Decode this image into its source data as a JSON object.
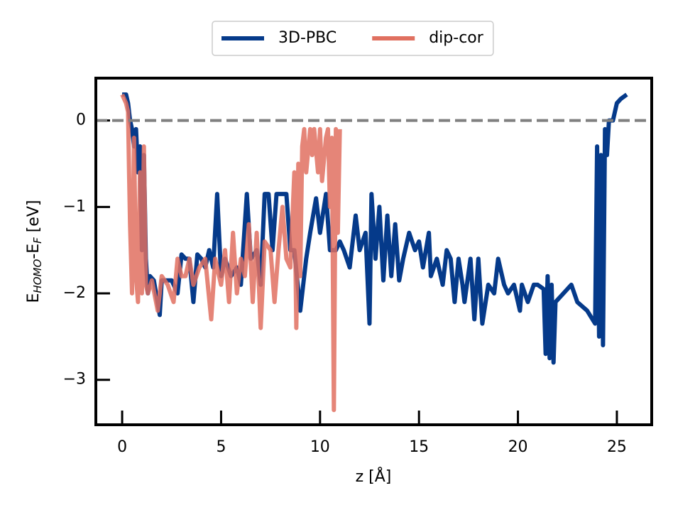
{
  "chart_data": {
    "type": "line",
    "xlabel": "z [Å]",
    "ylabel": [
      {
        "text": "E"
      },
      {
        "text": "HOMO",
        "sub": true
      },
      {
        "text": "-E"
      },
      {
        "text": "F",
        "sub": true
      },
      {
        "text": " [eV]"
      }
    ],
    "xlim": [
      -1.33,
      26.76
    ],
    "ylim": [
      -3.52,
      0.49
    ],
    "xticks": [
      0,
      5,
      10,
      15,
      20,
      25
    ],
    "yticks": [
      {
        "value": -3,
        "label": "−3"
      },
      {
        "value": -2,
        "label": "−2"
      },
      {
        "value": -1,
        "label": "−1"
      },
      0
    ],
    "hline": {
      "value": 0,
      "color": "#808080"
    },
    "legend": "top-center",
    "series": [
      {
        "name": "3D-PBC",
        "color": "#053a8a",
        "x": [
          0.0,
          0.2,
          0.3,
          0.4,
          0.5,
          0.6,
          0.7,
          0.8,
          0.9,
          1.0,
          1.1,
          1.2,
          1.3,
          1.4,
          1.6,
          1.9,
          2.0,
          2.5,
          2.8,
          3.0,
          3.2,
          3.4,
          3.6,
          3.8,
          4.0,
          4.2,
          4.4,
          4.6,
          4.8,
          5.0,
          5.2,
          5.5,
          5.8,
          6.0,
          6.3,
          6.5,
          6.8,
          7.0,
          7.2,
          7.4,
          7.6,
          7.8,
          8.0,
          8.3,
          8.5,
          8.7,
          9.0,
          9.3,
          9.5,
          9.8,
          10.0,
          10.3,
          10.5,
          10.8,
          11.0,
          11.2,
          11.5,
          11.8,
          12.0,
          12.3,
          12.5,
          12.6,
          12.8,
          13.0,
          13.2,
          13.4,
          13.6,
          13.8,
          14.0,
          14.2,
          14.5,
          14.8,
          15.0,
          15.2,
          15.5,
          15.6,
          15.9,
          16.2,
          16.4,
          16.6,
          16.8,
          17.0,
          17.2,
          17.3,
          17.6,
          17.8,
          18.0,
          18.2,
          18.5,
          18.8,
          19.0,
          19.3,
          19.5,
          19.8,
          20.1,
          20.2,
          20.5,
          20.8,
          21.0,
          21.3,
          21.4,
          21.5,
          21.6,
          21.7,
          21.8,
          21.9,
          22.3,
          22.7,
          23.0,
          23.5,
          23.9,
          24.0,
          24.1,
          24.2,
          24.3,
          24.4,
          24.5,
          24.6,
          24.8,
          25.0,
          25.2,
          25.5
        ],
        "values": [
          0.3,
          0.3,
          0.2,
          0.0,
          -0.1,
          -0.3,
          -0.1,
          -0.6,
          -0.3,
          -1.5,
          -0.4,
          -1.6,
          -2.0,
          -1.8,
          -1.85,
          -2.25,
          -1.85,
          -1.85,
          -2.0,
          -1.55,
          -1.6,
          -1.6,
          -2.1,
          -1.55,
          -1.6,
          -1.7,
          -1.5,
          -1.7,
          -0.85,
          -1.8,
          -1.6,
          -1.8,
          -1.7,
          -1.9,
          -0.85,
          -1.6,
          -1.5,
          -1.9,
          -0.85,
          -0.85,
          -1.5,
          -0.85,
          -0.85,
          -0.85,
          -1.5,
          -1.5,
          -2.2,
          -1.6,
          -1.3,
          -0.9,
          -1.3,
          -0.85,
          -1.5,
          -1.5,
          -1.4,
          -1.5,
          -1.7,
          -1.1,
          -1.5,
          -1.3,
          -2.35,
          -0.85,
          -1.6,
          -1.0,
          -1.85,
          -1.1,
          -1.8,
          -1.2,
          -1.85,
          -1.6,
          -1.3,
          -1.5,
          -1.4,
          -1.7,
          -1.3,
          -1.8,
          -1.6,
          -1.9,
          -1.5,
          -1.6,
          -2.1,
          -1.6,
          -1.9,
          -2.1,
          -1.6,
          -2.3,
          -1.6,
          -2.35,
          -1.9,
          -2.0,
          -1.6,
          -1.9,
          -2.0,
          -1.9,
          -2.2,
          -1.9,
          -2.1,
          -1.9,
          -1.9,
          -1.95,
          -2.7,
          -1.8,
          -2.75,
          -1.9,
          -2.8,
          -2.1,
          -2.0,
          -1.9,
          -2.1,
          -2.2,
          -2.35,
          -0.3,
          -2.5,
          -0.4,
          -2.6,
          -0.1,
          -0.4,
          0.0,
          0.0,
          0.2,
          0.25,
          0.3
        ]
      },
      {
        "name": "dip-cor",
        "color": "#e07060",
        "x": [
          0.0,
          0.2,
          0.3,
          0.35,
          0.4,
          0.5,
          0.6,
          0.7,
          0.8,
          0.9,
          1.0,
          1.1,
          1.2,
          1.3,
          1.5,
          1.8,
          2.0,
          2.3,
          2.6,
          2.8,
          3.0,
          3.2,
          3.4,
          3.6,
          3.9,
          4.2,
          4.5,
          4.7,
          5.0,
          5.2,
          5.4,
          5.6,
          5.8,
          6.0,
          6.2,
          6.4,
          6.6,
          6.8,
          7.0,
          7.2,
          7.5,
          7.7,
          7.9,
          8.1,
          8.3,
          8.5,
          8.7,
          8.8,
          8.9,
          9.0,
          9.1,
          9.2,
          9.3,
          9.5,
          9.6,
          9.7,
          9.9,
          10.0,
          10.1,
          10.3,
          10.4,
          10.5,
          10.6,
          10.7,
          10.8,
          10.9,
          11.0
        ],
        "values": [
          0.3,
          0.2,
          0.1,
          -0.6,
          -1.2,
          -2.0,
          -0.2,
          -1.8,
          -2.1,
          -0.6,
          -2.0,
          -0.3,
          -1.9,
          -2.0,
          -1.85,
          -2.2,
          -1.8,
          -1.9,
          -2.1,
          -1.6,
          -1.8,
          -1.8,
          -1.6,
          -1.9,
          -1.7,
          -1.6,
          -2.3,
          -1.6,
          -1.9,
          -1.5,
          -2.1,
          -1.3,
          -2.0,
          -1.6,
          -1.8,
          -1.2,
          -2.1,
          -1.3,
          -2.4,
          -1.4,
          -1.5,
          -2.1,
          -1.5,
          -1.0,
          -1.6,
          -1.7,
          -0.6,
          -2.4,
          -0.5,
          -1.8,
          -0.3,
          -0.1,
          -0.6,
          -0.1,
          -0.4,
          -0.1,
          -0.6,
          -0.1,
          -0.7,
          -0.2,
          -0.1,
          -1.0,
          -0.2,
          -3.35,
          -0.1,
          -1.3,
          -0.1
        ]
      }
    ]
  }
}
